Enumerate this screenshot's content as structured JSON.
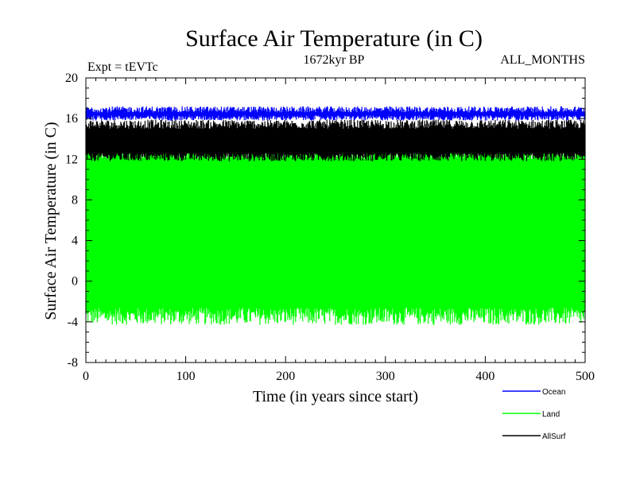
{
  "chart_data": {
    "type": "line",
    "title": "Surface Air Temperature (in C)",
    "subtitle_left": "Expt = tEVTc",
    "subtitle_center": "1672kyr BP",
    "subtitle_right": "ALL_MONTHS",
    "xlabel": "Time (in years since start)",
    "ylabel": "Surface Air Temperature (in C)",
    "xlim": [
      0,
      500
    ],
    "ylim": [
      -8,
      20
    ],
    "xticks": [
      0,
      100,
      200,
      300,
      400,
      500
    ],
    "yticks": [
      -8,
      -4,
      0,
      4,
      8,
      12,
      16,
      20
    ],
    "x_minor_step": 10,
    "y_minor_step": 1,
    "legend_position": "bottom-right",
    "series": [
      {
        "name": "Ocean",
        "color": "#0000ff",
        "min_range": [
          15.8,
          16.3
        ],
        "max_range": [
          16.6,
          17.2
        ],
        "mean": 16.5
      },
      {
        "name": "Land",
        "color": "#00ff00",
        "min_range": [
          -4.3,
          -2.6
        ],
        "max_range": [
          12.0,
          13.4
        ],
        "mean": 4.5
      },
      {
        "name": "AllSurf",
        "color": "#000000",
        "min_range": [
          11.8,
          12.6
        ],
        "max_range": [
          15.0,
          15.9
        ],
        "mean": 14.0
      }
    ]
  }
}
